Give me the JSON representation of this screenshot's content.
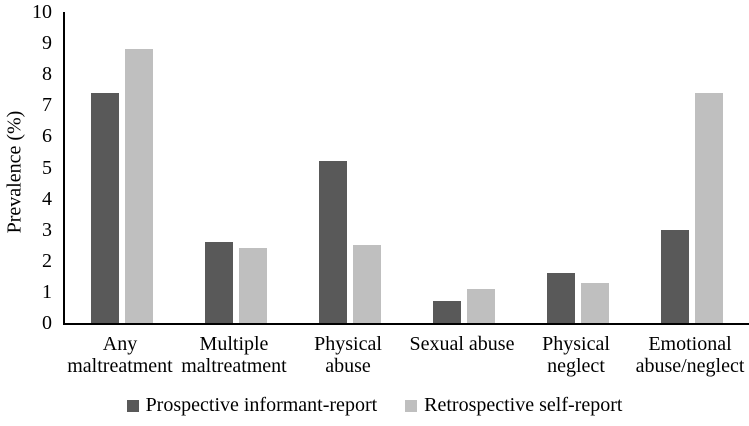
{
  "figure": {
    "background": "#ffffff",
    "axis_color": "#000000",
    "text_color": "#000000"
  },
  "chart_data": {
    "type": "bar",
    "title": "",
    "xlabel": "",
    "ylabel": "Prevalence (%)",
    "ylim": [
      0,
      10
    ],
    "yticks": [
      0,
      1,
      2,
      3,
      4,
      5,
      6,
      7,
      8,
      9,
      10
    ],
    "grid": false,
    "legend_position": "bottom",
    "categories": [
      "Any\nmaltreatment",
      "Multiple\nmaltreatment",
      "Physical\nabuse",
      "Sexual abuse",
      "Physical\nneglect",
      "Emotional\nabuse/neglect"
    ],
    "series": [
      {
        "name": "Prospective informant-report",
        "color": "#595959",
        "values": [
          7.4,
          2.6,
          5.2,
          0.7,
          1.6,
          3.0
        ]
      },
      {
        "name": "Retrospective self-report",
        "color": "#bfbfbf",
        "values": [
          8.8,
          2.4,
          2.5,
          1.1,
          1.3,
          7.4
        ]
      }
    ]
  }
}
